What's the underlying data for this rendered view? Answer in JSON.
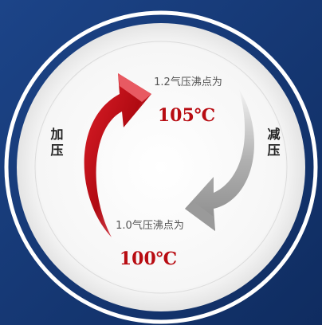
{
  "top_label": "1.2气压沸点为",
  "top_value": "105℃",
  "left_label": "加压",
  "right_label": "减压",
  "bottom_label": "1.0气压沸点为",
  "bottom_value": "100℃"
}
